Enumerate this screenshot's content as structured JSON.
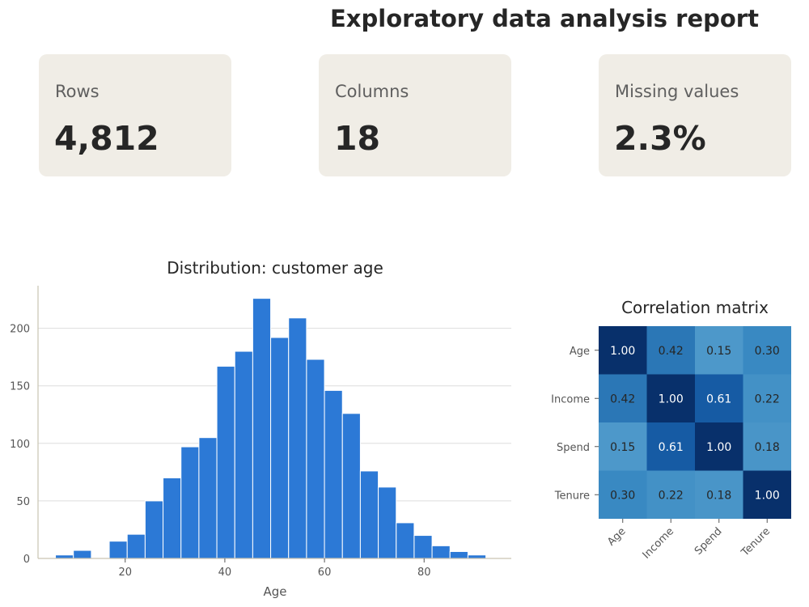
{
  "header": {
    "title": "Exploratory data analysis report"
  },
  "cards": [
    {
      "label": "Rows",
      "value": "4,812"
    },
    {
      "label": "Columns",
      "value": "18"
    },
    {
      "label": "Missing values",
      "value": "2.3%"
    }
  ],
  "colors": {
    "bar": "#2c79d6",
    "card_bg": "#f0ede6",
    "grid": "#dddddd",
    "axis": "#c9c4b2"
  },
  "chart_data": [
    {
      "type": "bar",
      "title": "Distribution: customer age",
      "xlabel": "Age",
      "ylabel": "",
      "xlim": [
        2.5,
        97.5
      ],
      "ylim": [
        0,
        237
      ],
      "xticks": [
        20,
        40,
        60,
        80
      ],
      "yticks": [
        0,
        50,
        100,
        150,
        200
      ],
      "grid": "horizontal",
      "bins": [
        {
          "x0": 6.0,
          "x1": 9.6,
          "count": 3
        },
        {
          "x0": 9.6,
          "x1": 13.2,
          "count": 7
        },
        {
          "x0": 13.2,
          "x1": 16.8,
          "count": 0
        },
        {
          "x0": 16.8,
          "x1": 20.4,
          "count": 15
        },
        {
          "x0": 20.4,
          "x1": 24.0,
          "count": 21
        },
        {
          "x0": 24.0,
          "x1": 27.6,
          "count": 50
        },
        {
          "x0": 27.6,
          "x1": 31.2,
          "count": 70
        },
        {
          "x0": 31.2,
          "x1": 34.8,
          "count": 97
        },
        {
          "x0": 34.8,
          "x1": 38.4,
          "count": 105
        },
        {
          "x0": 38.4,
          "x1": 42.0,
          "count": 167
        },
        {
          "x0": 42.0,
          "x1": 45.6,
          "count": 180
        },
        {
          "x0": 45.6,
          "x1": 49.2,
          "count": 226
        },
        {
          "x0": 49.2,
          "x1": 52.8,
          "count": 192
        },
        {
          "x0": 52.8,
          "x1": 56.4,
          "count": 209
        },
        {
          "x0": 56.4,
          "x1": 60.0,
          "count": 173
        },
        {
          "x0": 60.0,
          "x1": 63.6,
          "count": 146
        },
        {
          "x0": 63.6,
          "x1": 67.2,
          "count": 126
        },
        {
          "x0": 67.2,
          "x1": 70.8,
          "count": 76
        },
        {
          "x0": 70.8,
          "x1": 74.4,
          "count": 62
        },
        {
          "x0": 74.4,
          "x1": 78.0,
          "count": 31
        },
        {
          "x0": 78.0,
          "x1": 81.6,
          "count": 20
        },
        {
          "x0": 81.6,
          "x1": 85.2,
          "count": 11
        },
        {
          "x0": 85.2,
          "x1": 88.8,
          "count": 6
        },
        {
          "x0": 88.8,
          "x1": 92.4,
          "count": 3
        }
      ]
    },
    {
      "type": "heatmap",
      "title": "Correlation matrix",
      "rows": [
        "Age",
        "Income",
        "Spend",
        "Tenure"
      ],
      "columns": [
        "Age",
        "Income",
        "Spend",
        "Tenure"
      ],
      "values": [
        [
          1.0,
          0.42,
          0.15,
          0.3
        ],
        [
          0.42,
          1.0,
          0.61,
          0.22
        ],
        [
          0.15,
          0.61,
          1.0,
          0.18
        ],
        [
          0.3,
          0.22,
          0.18,
          1.0
        ]
      ],
      "labels": [
        [
          "1.00",
          "0.42",
          "0.15",
          "0.30"
        ],
        [
          "0.42",
          "1.00",
          "0.61",
          "0.22"
        ],
        [
          "0.15",
          "0.61",
          "1.00",
          "0.18"
        ],
        [
          "0.30",
          "0.22",
          "0.18",
          "1.00"
        ]
      ],
      "colorscale": "Blues"
    }
  ]
}
